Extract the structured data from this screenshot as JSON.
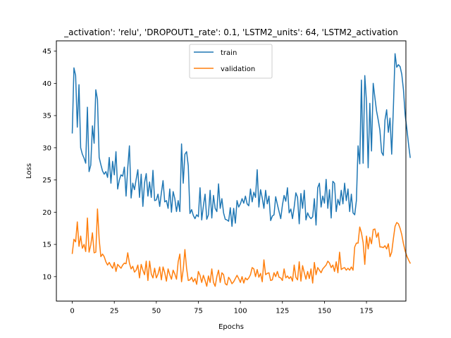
{
  "chart_data": {
    "type": "line",
    "title": "_activation': 'relu', 'DROPOUT1_rate': 0.1, 'LSTM2_units': 64, 'LSTM2_activation",
    "xlabel": "Epochs",
    "ylabel": "Loss",
    "xlim": [
      -9.45,
      198.45
    ],
    "ylim": [
      6.2,
      46.6
    ],
    "xticks": [
      0,
      25,
      50,
      75,
      100,
      125,
      150,
      175
    ],
    "yticks": [
      10,
      15,
      20,
      25,
      30,
      35,
      40,
      45
    ],
    "grid": false,
    "legend_position": "top-center",
    "series": [
      {
        "name": "train",
        "color": "#1f77b4",
        "values": [
          32.3,
          42.4,
          41.2,
          33.2,
          39.8,
          30.0,
          29.0,
          28.4,
          27.6,
          36.3,
          26.3,
          27.3,
          33.4,
          30.7,
          39.0,
          37.5,
          28.5,
          27.4,
          26.4,
          25.9,
          26.3,
          25.4,
          28.5,
          24.5,
          27.9,
          25.8,
          29.4,
          23.6,
          25.0,
          25.8,
          25.6,
          27.0,
          22.5,
          26.9,
          30.3,
          22.2,
          24.5,
          23.5,
          25.1,
          26.6,
          22.3,
          25.9,
          20.9,
          24.6,
          26.0,
          22.5,
          24.7,
          22.3,
          26.5,
          21.8,
          21.9,
          22.8,
          20.9,
          23.0,
          24.9,
          21.6,
          21.8,
          20.6,
          23.6,
          20.0,
          23.2,
          22.1,
          20.1,
          21.8,
          20.1,
          30.6,
          24.5,
          29.0,
          29.4,
          27.2,
          19.8,
          20.4,
          19.5,
          19.0,
          19.6,
          19.3,
          23.8,
          18.8,
          21.0,
          22.8,
          18.9,
          19.6,
          23.4,
          19.1,
          22.6,
          20.6,
          20.1,
          24.4,
          20.6,
          22.1,
          19.9,
          18.9,
          18.8,
          18.6,
          20.7,
          17.8,
          20.6,
          18.3,
          21.8,
          20.8,
          21.3,
          22.1,
          21.4,
          22.5,
          21.3,
          21.0,
          23.6,
          21.6,
          23.1,
          22.3,
          26.6,
          20.8,
          23.5,
          22.2,
          20.6,
          23.4,
          21.3,
          22.5,
          18.7,
          19.4,
          19.6,
          22.4,
          21.2,
          20.1,
          19.0,
          21.1,
          22.6,
          21.7,
          23.8,
          19.9,
          20.5,
          19.0,
          20.8,
          23.0,
          22.3,
          18.2,
          22.9,
          20.6,
          23.4,
          18.8,
          19.9,
          19.3,
          19.0,
          19.3,
          22.1,
          18.0,
          23.8,
          24.5,
          20.8,
          22.5,
          21.4,
          25.1,
          20.6,
          23.5,
          19.1,
          24.8,
          24.5,
          20.1,
          22.0,
          21.1,
          23.4,
          21.3,
          24.5,
          21.8,
          23.6,
          20.1,
          22.8,
          19.9,
          19.6,
          21.8,
          30.3,
          27.5,
          40.5,
          27.6,
          41.2,
          37.2,
          26.9,
          36.9,
          29.5,
          40.0,
          37.8,
          35.7,
          34.3,
          32.7,
          29.3,
          28.8,
          34.3,
          35.9,
          32.4,
          34.6,
          29.0,
          36.2,
          44.6,
          42.5,
          42.9,
          42.6,
          41.4,
          39.0,
          35.1,
          33.0,
          30.6,
          28.5
        ]
      },
      {
        "name": "validation",
        "color": "#ff7f0e",
        "values": [
          13.6,
          15.8,
          15.4,
          18.5,
          14.7,
          16.3,
          14.4,
          15.0,
          13.9,
          19.1,
          13.8,
          14.9,
          16.8,
          13.7,
          13.8,
          20.5,
          15.8,
          13.1,
          13.5,
          13.1,
          12.3,
          11.8,
          12.2,
          11.7,
          11.3,
          12.2,
          10.8,
          11.9,
          11.6,
          11.3,
          11.8,
          12.1,
          12.0,
          13.7,
          12.1,
          11.2,
          11.6,
          10.7,
          11.0,
          11.8,
          9.8,
          11.9,
          11.0,
          10.3,
          12.4,
          9.4,
          12.4,
          10.4,
          9.8,
          11.3,
          9.8,
          10.4,
          11.5,
          9.5,
          11.5,
          10.6,
          9.3,
          11.2,
          10.3,
          9.6,
          11.0,
          10.4,
          9.6,
          12.3,
          13.5,
          9.2,
          11.1,
          14.2,
          11.3,
          9.4,
          9.5,
          9.9,
          9.2,
          9.7,
          8.8,
          10.8,
          10.2,
          9.1,
          10.2,
          9.4,
          8.5,
          10.1,
          9.1,
          11.2,
          9.1,
          8.5,
          10.0,
          11.0,
          9.1,
          10.6,
          10.3,
          8.9,
          8.7,
          9.9,
          9.5,
          8.9,
          9.2,
          9.7,
          10.2,
          9.7,
          9.1,
          10.0,
          9.0,
          9.8,
          9.5,
          9.8,
          10.3,
          11.4,
          11.2,
          10.0,
          11.1,
          9.9,
          10.5,
          9.2,
          12.6,
          10.3,
          10.5,
          10.6,
          9.4,
          9.5,
          10.6,
          10.0,
          10.8,
          9.9,
          9.8,
          9.4,
          11.2,
          9.8,
          10.1,
          9.7,
          10.0,
          9.3,
          11.8,
          9.9,
          9.5,
          12.3,
          9.3,
          11.7,
          10.6,
          9.6,
          10.8,
          9.7,
          11.2,
          9.0,
          12.2,
          10.3,
          11.4,
          11.0,
          10.6,
          11.2,
          11.5,
          11.8,
          12.4,
          12.1,
          11.4,
          11.8,
          10.8,
          12.3,
          10.6,
          13.8,
          11.1,
          11.3,
          11.4,
          11.0,
          11.3,
          11.0,
          11.5,
          11.0,
          14.6,
          15.2,
          15.2,
          17.7,
          16.8,
          15.3,
          11.9,
          16.3,
          14.3,
          16.1,
          15.1,
          17.3,
          17.4,
          16.1,
          16.8,
          14.6,
          14.6,
          14.5,
          14.8,
          14.3,
          15.1,
          13.1,
          13.8,
          15.9,
          17.8,
          18.4,
          18.2,
          17.5,
          16.5,
          15.1,
          14.0,
          13.2,
          12.6,
          12.1
        ]
      }
    ]
  }
}
